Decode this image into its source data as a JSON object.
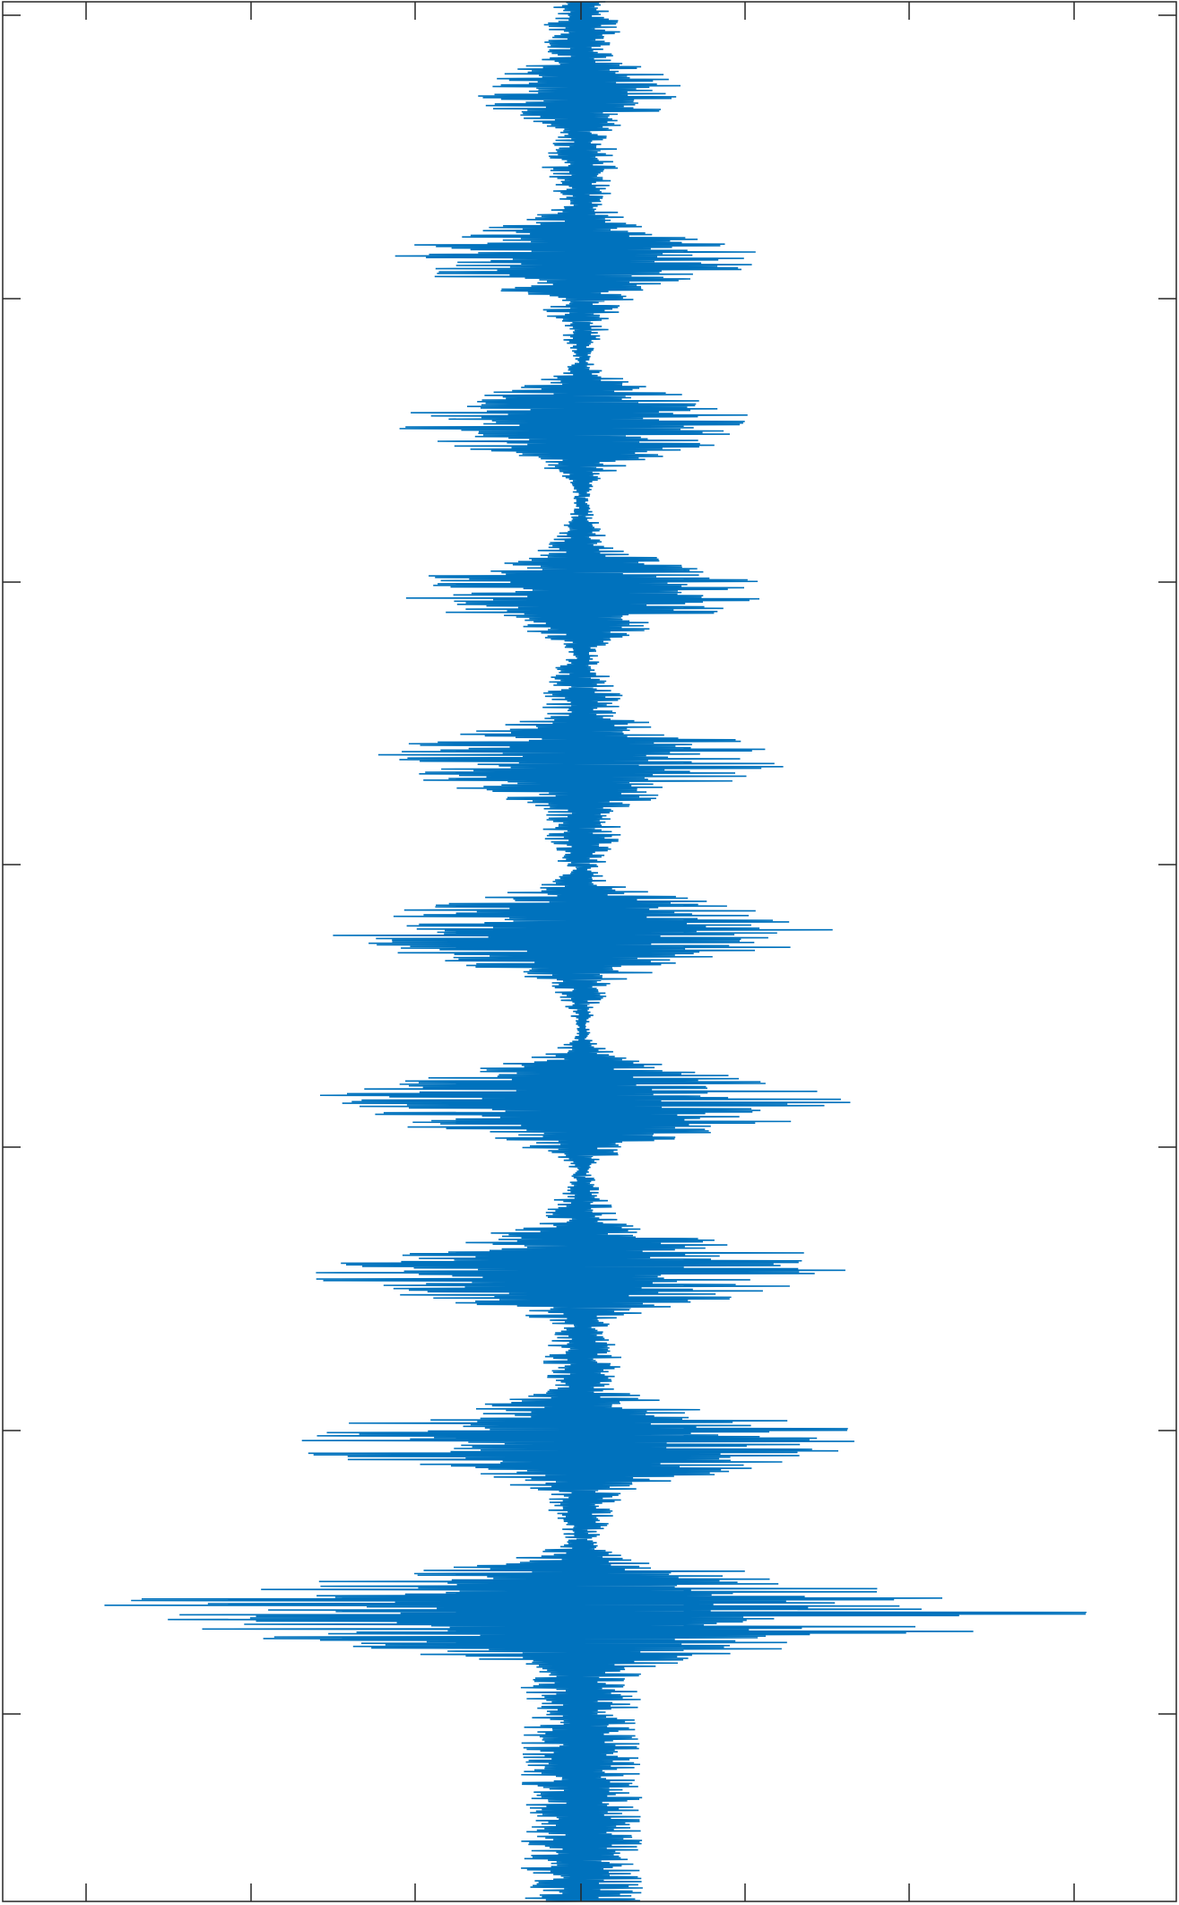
{
  "colors": {
    "line": "#0072BD",
    "axes": "#262626",
    "background": "#ffffff"
  },
  "chart_data": {
    "type": "line",
    "orientation": "vertical-trace",
    "title": "",
    "xlabel": "",
    "ylabel": "",
    "tick_labels_visible": false,
    "grid": false,
    "legend": "none",
    "x_ticks_count": 7,
    "y_ticks_count": 6,
    "signal": {
      "samples": 2400,
      "center": 0,
      "noise_floor_amplitude": 0.08,
      "bursts": [
        {
          "position": 0.048,
          "amplitude": 0.22,
          "width": 0.022
        },
        {
          "position": 0.135,
          "amplitude": 0.38,
          "width": 0.024
        },
        {
          "position": 0.222,
          "amplitude": 0.38,
          "width": 0.024
        },
        {
          "position": 0.311,
          "amplitude": 0.38,
          "width": 0.024
        },
        {
          "position": 0.4,
          "amplitude": 0.44,
          "width": 0.024
        },
        {
          "position": 0.49,
          "amplitude": 0.52,
          "width": 0.024
        },
        {
          "position": 0.58,
          "amplitude": 0.54,
          "width": 0.024
        },
        {
          "position": 0.668,
          "amplitude": 0.56,
          "width": 0.024
        },
        {
          "position": 0.758,
          "amplitude": 0.6,
          "width": 0.024
        },
        {
          "position": 0.848,
          "amplitude": 1.0,
          "width": 0.026
        }
      ],
      "tail_amplitude": 0.12
    }
  }
}
